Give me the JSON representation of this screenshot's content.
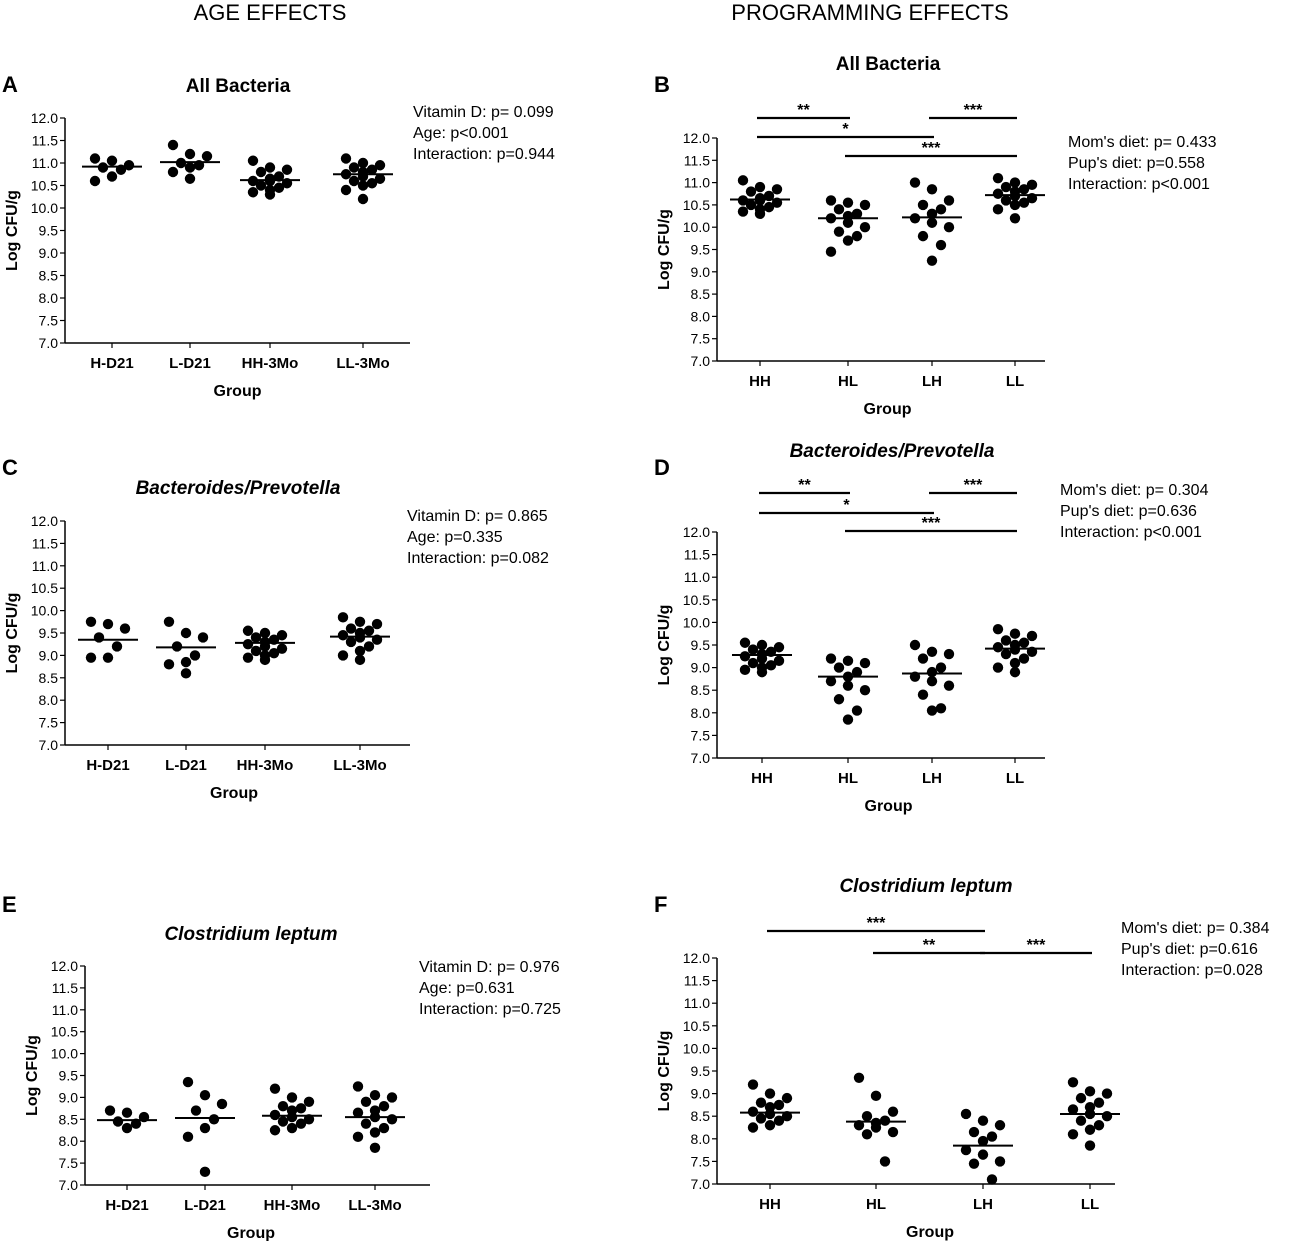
{
  "headers": {
    "left": "AGE EFFECTS",
    "right": "PROGRAMMING EFFECTS"
  },
  "chart_data": [
    {
      "panel": "A",
      "type": "scatter",
      "title": "All Bacteria",
      "title_italic": false,
      "xlabel": "Group",
      "ylabel": "Log CFU/g",
      "ylim": [
        7.0,
        12.0
      ],
      "yticks": [
        "7.0",
        "7.5",
        "8.0",
        "8.5",
        "9.0",
        "9.5",
        "10.0",
        "10.5",
        "11.0",
        "11.5",
        "12.0"
      ],
      "categories": [
        "H-D21",
        "L-D21",
        "HH-3Mo",
        "LL-3Mo"
      ],
      "points": [
        [
          10.95,
          11.05,
          11.1,
          10.85,
          10.9,
          10.7,
          10.6
        ],
        [
          11.4,
          11.2,
          11.15,
          10.95,
          10.9,
          10.8,
          10.65,
          11.0
        ],
        [
          11.05,
          10.9,
          10.85,
          10.8,
          10.7,
          10.65,
          10.6,
          10.55,
          10.5,
          10.45,
          10.4,
          10.35,
          10.6,
          10.3
        ],
        [
          11.1,
          11.0,
          10.95,
          10.85,
          10.8,
          10.75,
          10.7,
          10.65,
          10.6,
          10.55,
          10.5,
          10.4,
          10.9,
          10.2
        ]
      ],
      "means": [
        10.92,
        11.02,
        10.62,
        10.75
      ],
      "stats": [
        "Vitamin D: p= 0.099",
        "Age: p<0.001",
        "Interaction: p=0.944"
      ],
      "significance": []
    },
    {
      "panel": "B",
      "type": "scatter",
      "title": "All Bacteria",
      "title_italic": false,
      "xlabel": "Group",
      "ylabel": "Log CFU/g",
      "ylim": [
        7.0,
        12.0
      ],
      "yticks": [
        "7.0",
        "7.5",
        "8.0",
        "8.5",
        "9.0",
        "9.5",
        "10.0",
        "10.5",
        "11.0",
        "11.5",
        "12.0"
      ],
      "categories": [
        "HH",
        "HL",
        "LH",
        "LL"
      ],
      "points": [
        [
          11.05,
          10.9,
          10.85,
          10.8,
          10.7,
          10.65,
          10.6,
          10.55,
          10.5,
          10.45,
          10.4,
          10.35,
          10.6,
          10.3
        ],
        [
          10.6,
          10.55,
          10.5,
          10.4,
          10.3,
          10.25,
          10.2,
          10.1,
          10.0,
          9.9,
          9.8,
          9.7,
          9.45
        ],
        [
          11.0,
          10.85,
          10.6,
          10.5,
          10.4,
          10.3,
          10.2,
          10.1,
          10.0,
          9.8,
          9.6,
          9.25
        ],
        [
          11.1,
          11.0,
          10.95,
          10.85,
          10.8,
          10.75,
          10.7,
          10.65,
          10.6,
          10.55,
          10.5,
          10.4,
          10.9,
          10.2
        ]
      ],
      "means": [
        10.62,
        10.2,
        10.22,
        10.72
      ],
      "stats": [
        "Mom's diet: p= 0.433",
        "Pup's diet: p=0.558",
        "Interaction: p<0.001"
      ],
      "significance": [
        {
          "from": 0,
          "to": 1,
          "label": "**",
          "row": 0
        },
        {
          "from": 2,
          "to": 3,
          "label": "***",
          "row": 0
        },
        {
          "from": 0,
          "to": 2,
          "label": "*",
          "row": 1
        },
        {
          "from": 1,
          "to": 3,
          "label": "***",
          "row": 2
        }
      ]
    },
    {
      "panel": "C",
      "type": "scatter",
      "title": "Bacteroides/Prevotella",
      "title_italic": true,
      "xlabel": "Group",
      "ylabel": "Log CFU/g",
      "ylim": [
        7.0,
        12.0
      ],
      "yticks": [
        "7.0",
        "7.5",
        "8.0",
        "8.5",
        "9.0",
        "9.5",
        "10.0",
        "10.5",
        "11.0",
        "11.5",
        "12.0"
      ],
      "categories": [
        "H-D21",
        "L-D21",
        "HH-3Mo",
        "LL-3Mo"
      ],
      "points": [
        [
          9.75,
          9.7,
          9.6,
          9.4,
          9.2,
          8.95,
          8.95
        ],
        [
          9.75,
          9.5,
          9.4,
          9.2,
          9.0,
          8.85,
          8.8,
          8.6
        ],
        [
          9.55,
          9.5,
          9.45,
          9.4,
          9.35,
          9.3,
          9.25,
          9.2,
          9.15,
          9.1,
          9.05,
          9.0,
          8.95,
          8.9
        ],
        [
          9.85,
          9.75,
          9.7,
          9.6,
          9.55,
          9.5,
          9.45,
          9.4,
          9.35,
          9.3,
          9.2,
          9.1,
          9.0,
          8.9
        ]
      ],
      "means": [
        9.35,
        9.18,
        9.28,
        9.42
      ],
      "stats": [
        "Vitamin D: p= 0.865",
        "Age: p=0.335",
        "Interaction: p=0.082"
      ],
      "significance": []
    },
    {
      "panel": "D",
      "type": "scatter",
      "title": "Bacteroides/Prevotella",
      "title_italic": true,
      "xlabel": "Group",
      "ylabel": "Log CFU/g",
      "ylim": [
        7.0,
        12.0
      ],
      "yticks": [
        "7.0",
        "7.5",
        "8.0",
        "8.5",
        "9.0",
        "9.5",
        "10.0",
        "10.5",
        "11.0",
        "11.5",
        "12.0"
      ],
      "categories": [
        "HH",
        "HL",
        "LH",
        "LL"
      ],
      "points": [
        [
          9.55,
          9.5,
          9.45,
          9.4,
          9.35,
          9.3,
          9.25,
          9.2,
          9.15,
          9.1,
          9.05,
          9.0,
          8.95,
          8.9
        ],
        [
          9.2,
          9.15,
          9.1,
          9.0,
          8.9,
          8.8,
          8.7,
          8.6,
          8.5,
          8.3,
          8.05,
          7.85
        ],
        [
          9.5,
          9.35,
          9.3,
          9.2,
          9.0,
          8.9,
          8.8,
          8.7,
          8.6,
          8.4,
          8.1,
          8.05
        ],
        [
          9.85,
          9.75,
          9.7,
          9.6,
          9.55,
          9.5,
          9.45,
          9.4,
          9.35,
          9.3,
          9.2,
          9.1,
          9.0,
          8.9
        ]
      ],
      "means": [
        9.28,
        8.8,
        8.87,
        9.42
      ],
      "stats": [
        "Mom's diet: p= 0.304",
        "Pup's diet: p=0.636",
        "Interaction: p<0.001"
      ],
      "significance": [
        {
          "from": 0,
          "to": 1,
          "label": "**",
          "row": 0
        },
        {
          "from": 2,
          "to": 3,
          "label": "***",
          "row": 0
        },
        {
          "from": 0,
          "to": 2,
          "label": "*",
          "row": 1
        },
        {
          "from": 1,
          "to": 3,
          "label": "***",
          "row": 2
        }
      ]
    },
    {
      "panel": "E",
      "type": "scatter",
      "title": "Clostridium leptum",
      "title_italic": true,
      "xlabel": "Group",
      "ylabel": "Log CFU/g",
      "ylim": [
        7.0,
        12.0
      ],
      "yticks": [
        "7.0",
        "7.5",
        "8.0",
        "8.5",
        "9.0",
        "9.5",
        "10.0",
        "10.5",
        "11.0",
        "11.5",
        "12.0"
      ],
      "categories": [
        "H-D21",
        "L-D21",
        "HH-3Mo",
        "LL-3Mo"
      ],
      "points": [
        [
          8.7,
          8.65,
          8.55,
          8.45,
          8.4,
          8.3
        ],
        [
          9.35,
          9.05,
          8.85,
          8.7,
          8.5,
          8.3,
          8.1,
          7.3
        ],
        [
          9.2,
          9.0,
          8.9,
          8.8,
          8.75,
          8.7,
          8.6,
          8.55,
          8.5,
          8.45,
          8.4,
          8.3,
          8.25
        ],
        [
          9.25,
          9.05,
          9.0,
          8.9,
          8.8,
          8.7,
          8.65,
          8.55,
          8.5,
          8.4,
          8.3,
          8.2,
          8.1,
          7.85
        ]
      ],
      "means": [
        8.48,
        8.53,
        8.58,
        8.55
      ],
      "stats": [
        "Vitamin D: p= 0.976",
        "Age: p=0.631",
        "Interaction: p=0.725"
      ],
      "significance": []
    },
    {
      "panel": "F",
      "type": "scatter",
      "title": "Clostridium leptum",
      "title_italic": true,
      "xlabel": "Group",
      "ylabel": "Log CFU/g",
      "ylim": [
        7.0,
        12.0
      ],
      "yticks": [
        "7.0",
        "7.5",
        "8.0",
        "8.5",
        "9.0",
        "9.5",
        "10.0",
        "10.5",
        "11.0",
        "11.5",
        "12.0"
      ],
      "categories": [
        "HH",
        "HL",
        "LH",
        "LL"
      ],
      "points": [
        [
          9.2,
          9.0,
          8.9,
          8.8,
          8.75,
          8.7,
          8.6,
          8.55,
          8.5,
          8.45,
          8.4,
          8.3,
          8.25
        ],
        [
          9.35,
          8.95,
          8.6,
          8.5,
          8.4,
          8.35,
          8.3,
          8.25,
          8.15,
          8.1,
          7.5
        ],
        [
          8.55,
          8.4,
          8.3,
          8.15,
          8.05,
          7.95,
          7.75,
          7.65,
          7.5,
          7.45,
          7.1
        ],
        [
          9.25,
          9.05,
          9.0,
          8.9,
          8.8,
          8.7,
          8.65,
          8.55,
          8.5,
          8.4,
          8.3,
          8.2,
          8.1,
          7.85
        ]
      ],
      "means": [
        8.58,
        8.38,
        7.85,
        8.55
      ],
      "stats": [
        "Mom's diet: p= 0.384",
        "Pup's diet: p=0.616",
        "Interaction: p=0.028"
      ],
      "significance": [
        {
          "from": 0,
          "to": 2,
          "label": "***",
          "row": 0
        },
        {
          "from": 1,
          "to": 2,
          "label": "**",
          "row": 1
        },
        {
          "from": 2,
          "to": 3,
          "label": "***",
          "row": 1
        }
      ]
    }
  ]
}
